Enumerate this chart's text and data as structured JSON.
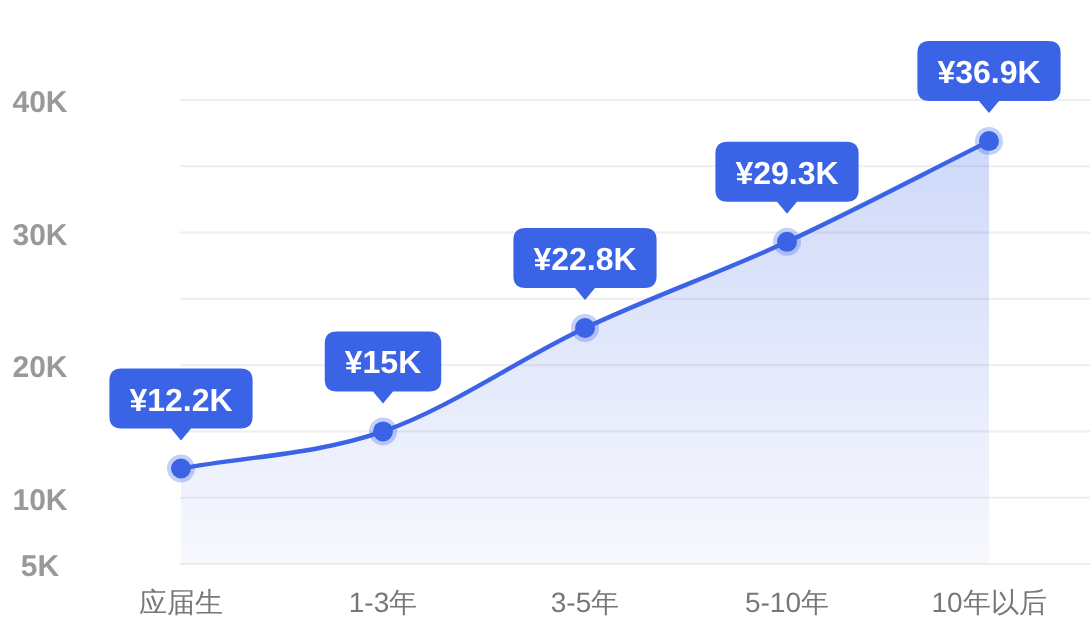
{
  "chart_data": {
    "type": "area",
    "categories": [
      "应届生",
      "1-3年",
      "3-5年",
      "5-10年",
      "10年以后"
    ],
    "values": [
      12.2,
      15,
      22.8,
      29.3,
      36.9
    ],
    "value_labels": [
      "¥12.2K",
      "¥15K",
      "¥22.8K",
      "¥29.3K",
      "¥36.9K"
    ],
    "color": "#3b63e6",
    "ylim": [
      5,
      40
    ],
    "yticks": [
      {
        "value": 5,
        "label": "5K"
      },
      {
        "value": 10,
        "label": "10K"
      },
      {
        "value": 15,
        "label": null
      },
      {
        "value": 20,
        "label": "20K"
      },
      {
        "value": 25,
        "label": null
      },
      {
        "value": 30,
        "label": "30K"
      },
      {
        "value": 35,
        "label": null
      },
      {
        "value": 40,
        "label": "40K"
      }
    ],
    "grid": "y",
    "marker": "circle"
  }
}
